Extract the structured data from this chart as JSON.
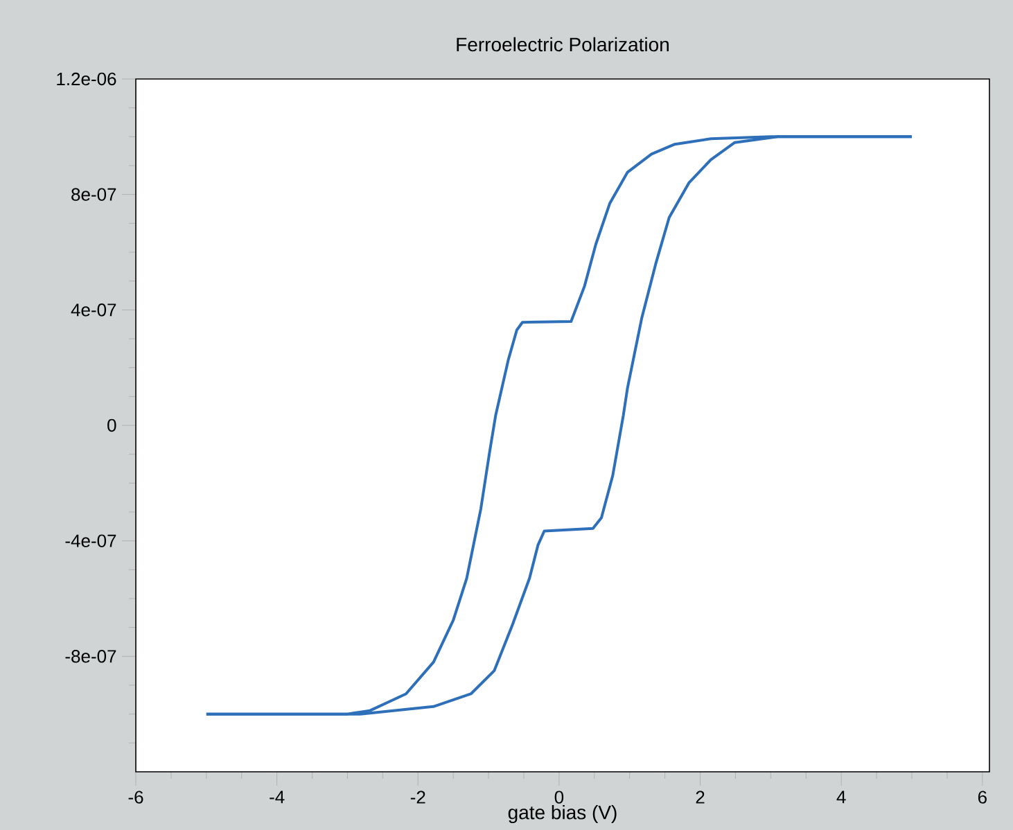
{
  "chart_data": {
    "type": "line",
    "title": "Ferroelectric Polarization",
    "xlabel": "gate bias (V)",
    "xlim": [
      -6,
      6.1
    ],
    "ylim": [
      -1.2e-06,
      1.2e-06
    ],
    "xticks": [
      -6,
      -4,
      -2,
      0,
      2,
      4,
      6,
      {
        "value": -5.5,
        "label": null
      },
      {
        "value": -5,
        "label": null
      },
      {
        "value": -4.5,
        "label": null
      },
      {
        "value": -3.5,
        "label": null
      },
      {
        "value": -3,
        "label": null
      },
      {
        "value": -2.5,
        "label": null
      },
      {
        "value": -1.5,
        "label": null
      },
      {
        "value": -1,
        "label": null
      },
      {
        "value": -0.5,
        "label": null
      },
      {
        "value": 0.5,
        "label": null
      },
      {
        "value": 1,
        "label": null
      },
      {
        "value": 1.5,
        "label": null
      },
      {
        "value": 2.5,
        "label": null
      },
      {
        "value": 3,
        "label": null
      },
      {
        "value": 3.5,
        "label": null
      },
      {
        "value": 4.5,
        "label": null
      },
      {
        "value": 5,
        "label": null
      },
      {
        "value": 5.5,
        "label": null
      }
    ],
    "yticks": [
      {
        "value": -8e-07,
        "label": "-8e-07"
      },
      {
        "value": -4e-07,
        "label": "-4e-07"
      },
      0,
      {
        "value": 4e-07,
        "label": "4e-07"
      },
      {
        "value": 8e-07,
        "label": "8e-07"
      },
      {
        "value": 1.2e-06,
        "label": "1.2e-06"
      },
      {
        "value": -1.1e-06,
        "label": null
      },
      {
        "value": -1e-06,
        "label": null
      },
      {
        "value": -9e-07,
        "label": null
      },
      {
        "value": -7e-07,
        "label": null
      },
      {
        "value": -6e-07,
        "label": null
      },
      {
        "value": -5e-07,
        "label": null
      },
      {
        "value": -3e-07,
        "label": null
      },
      {
        "value": -2e-07,
        "label": null
      },
      {
        "value": -1e-07,
        "label": null
      },
      {
        "value": 1e-07,
        "label": null
      },
      {
        "value": 2e-07,
        "label": null
      },
      {
        "value": 3e-07,
        "label": null
      },
      {
        "value": 5e-07,
        "label": null
      },
      {
        "value": 6e-07,
        "label": null
      },
      {
        "value": 7e-07,
        "label": null
      },
      {
        "value": 9e-07,
        "label": null
      },
      {
        "value": 1e-06,
        "label": null
      },
      {
        "value": 1.1e-06,
        "label": null
      }
    ],
    "series": [
      {
        "color": "#2e6fba",
        "x": [
          5,
          3,
          2.15,
          1.64,
          1.31,
          0.97,
          0.72,
          0.52,
          0.36,
          0.17,
          -0.52,
          -0.6,
          -0.72,
          -0.9,
          -0.99,
          -1.11,
          -1.31,
          -1.5,
          -1.78,
          -2.17,
          -2.68,
          -3,
          -5
        ],
        "values": [
          1e-06,
          1e-06,
          9.93e-07,
          9.74e-07,
          9.4e-07,
          8.77e-07,
          7.7e-07,
          6.27e-07,
          4.82e-07,
          3.6e-07,
          3.57e-07,
          3.3e-07,
          2.27e-07,
          3.4e-08,
          -1e-07,
          -2.9e-07,
          -5.3e-07,
          -6.75e-07,
          -8.2e-07,
          -9.3e-07,
          -9.88e-07,
          -1e-06,
          -1e-06
        ]
      },
      {
        "color": "#2e6fba",
        "x": [
          -5,
          -2.82,
          -1.78,
          -1.25,
          -0.92,
          -0.66,
          -0.42,
          -0.3,
          -0.21,
          0.48,
          0.6,
          0.76,
          0.91,
          0.97,
          1.17,
          1.37,
          1.56,
          1.84,
          2.15,
          2.49,
          3.1,
          5
        ],
        "values": [
          -1e-06,
          -1e-06,
          -9.74e-07,
          -9.3e-07,
          -8.5e-07,
          -6.9e-07,
          -5.3e-07,
          -4.15e-07,
          -3.66e-07,
          -3.57e-07,
          -3.2e-07,
          -1.74e-07,
          3.4e-08,
          1.3e-07,
          3.7e-07,
          5.6e-07,
          7.2e-07,
          8.4e-07,
          9.2e-07,
          9.8e-07,
          1e-06,
          1e-06
        ]
      }
    ]
  }
}
